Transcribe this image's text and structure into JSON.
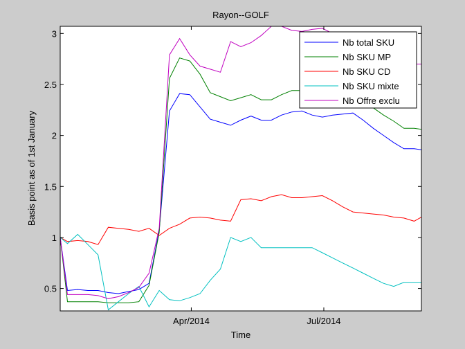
{
  "chart_data": {
    "type": "line",
    "title": "Rayon--GOLF",
    "xlabel": "Time",
    "ylabel": "Basis point as of 1st January",
    "xlim": [
      "2014-01-01",
      "2014-09-06"
    ],
    "ylim": [
      0.28,
      3.07
    ],
    "yticks": [
      0.5,
      1,
      1.5,
      2,
      2.5,
      3
    ],
    "ytick_labels": [
      "0.5",
      "1",
      "1.5",
      "2",
      "2.5",
      "3"
    ],
    "xticks": [
      "2014-04-01",
      "2014-07-01"
    ],
    "xtick_labels": [
      "Apr/2014",
      "Jul/2014"
    ],
    "grid": false,
    "legend_position": "top-right",
    "x": [
      "2014-01-01",
      "2014-01-06",
      "2014-01-13",
      "2014-01-20",
      "2014-01-27",
      "2014-02-03",
      "2014-02-10",
      "2014-02-17",
      "2014-02-24",
      "2014-03-03",
      "2014-03-10",
      "2014-03-17",
      "2014-03-24",
      "2014-03-31",
      "2014-04-07",
      "2014-04-14",
      "2014-04-21",
      "2014-04-28",
      "2014-05-05",
      "2014-05-12",
      "2014-05-19",
      "2014-05-26",
      "2014-06-02",
      "2014-06-09",
      "2014-06-16",
      "2014-06-23",
      "2014-06-30",
      "2014-07-07",
      "2014-07-14",
      "2014-07-21",
      "2014-07-28",
      "2014-08-04",
      "2014-08-11",
      "2014-08-18",
      "2014-08-25",
      "2014-09-01",
      "2014-09-06"
    ],
    "series": [
      {
        "name": "Nb total SKU",
        "color": "#0000ff",
        "values": [
          1.0,
          0.48,
          0.49,
          0.48,
          0.48,
          0.46,
          0.45,
          0.47,
          0.49,
          0.55,
          1.07,
          2.24,
          2.41,
          2.4,
          2.28,
          2.16,
          2.13,
          2.1,
          2.15,
          2.19,
          2.15,
          2.15,
          2.2,
          2.23,
          2.24,
          2.2,
          2.18,
          2.2,
          2.21,
          2.22,
          2.15,
          2.07,
          2.0,
          1.93,
          1.87,
          1.87,
          1.86
        ]
      },
      {
        "name": "Nb SKU MP",
        "color": "#008000",
        "values": [
          1.0,
          0.37,
          0.37,
          0.37,
          0.37,
          0.36,
          0.36,
          0.36,
          0.37,
          0.53,
          1.05,
          2.56,
          2.76,
          2.73,
          2.6,
          2.42,
          2.38,
          2.34,
          2.37,
          2.4,
          2.35,
          2.35,
          2.4,
          2.44,
          2.44,
          2.43,
          2.41,
          2.43,
          2.42,
          2.41,
          2.34,
          2.27,
          2.2,
          2.14,
          2.07,
          2.07,
          2.06
        ]
      },
      {
        "name": "Nb SKU CD",
        "color": "#ff0000",
        "values": [
          1.0,
          0.96,
          0.97,
          0.96,
          0.93,
          1.1,
          1.09,
          1.08,
          1.06,
          1.09,
          1.02,
          1.09,
          1.13,
          1.19,
          1.2,
          1.19,
          1.17,
          1.16,
          1.37,
          1.38,
          1.36,
          1.4,
          1.42,
          1.39,
          1.39,
          1.4,
          1.41,
          1.36,
          1.3,
          1.25,
          1.24,
          1.23,
          1.22,
          1.2,
          1.19,
          1.16,
          1.2
        ]
      },
      {
        "name": "Nb SKU mixte",
        "color": "#00c0c0",
        "values": [
          1.0,
          0.94,
          1.03,
          0.93,
          0.83,
          0.29,
          0.37,
          0.45,
          0.52,
          0.32,
          0.48,
          0.39,
          0.38,
          0.41,
          0.45,
          0.58,
          0.69,
          1.0,
          0.96,
          1.0,
          0.9,
          0.9,
          0.9,
          0.9,
          0.9,
          0.9,
          0.85,
          0.8,
          0.75,
          0.7,
          0.65,
          0.6,
          0.55,
          0.52,
          0.56,
          0.56,
          0.56
        ]
      },
      {
        "name": "Nb Offre exclu",
        "color": "#c000c0",
        "values": [
          1.0,
          0.44,
          0.44,
          0.44,
          0.43,
          0.4,
          0.42,
          0.46,
          0.51,
          0.65,
          1.09,
          2.79,
          2.95,
          2.79,
          2.68,
          2.65,
          2.62,
          2.92,
          2.87,
          2.91,
          2.98,
          3.07,
          3.07,
          3.03,
          3.02,
          3.04,
          3.05,
          3.0,
          2.93,
          2.88,
          2.83,
          2.78,
          2.74,
          2.72,
          2.7,
          2.7,
          2.7
        ]
      }
    ]
  }
}
